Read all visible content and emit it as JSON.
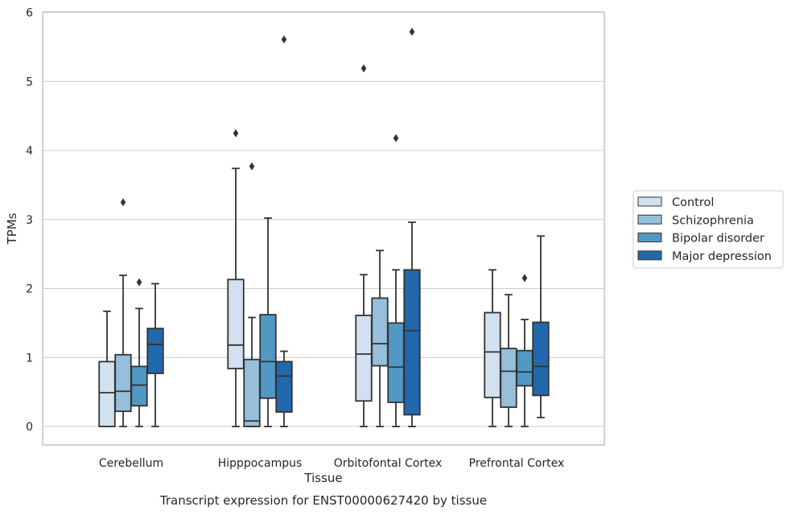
{
  "chart_data": {
    "type": "box",
    "title": "",
    "caption": "Transcript expression for ENST00000627420 by tissue",
    "xlabel": "Tissue",
    "ylabel": "TPMs",
    "ylim": [
      -0.27,
      6.0
    ],
    "yticks": [
      "0",
      "1",
      "2",
      "3",
      "4",
      "5",
      "6"
    ],
    "grid": "horizontal",
    "legend_position": "right",
    "categories": [
      "Cerebellum",
      "Hipppocampus",
      "Orbitofontal Cortex",
      "Prefrontal Cortex"
    ],
    "series": [
      {
        "name": "Control",
        "color": "#d1e1f0",
        "boxes": [
          {
            "whislo": 0.0,
            "q1": 0.0,
            "med": 0.49,
            "q3": 0.94,
            "whishi": 1.67,
            "fliers": []
          },
          {
            "whislo": 0.0,
            "q1": 0.84,
            "med": 1.18,
            "q3": 2.13,
            "whishi": 3.74,
            "fliers": [
              4.25
            ]
          },
          {
            "whislo": 0.0,
            "q1": 0.37,
            "med": 1.05,
            "q3": 1.61,
            "whishi": 2.2,
            "fliers": [
              5.19
            ]
          },
          {
            "whislo": 0.0,
            "q1": 0.42,
            "med": 1.08,
            "q3": 1.65,
            "whishi": 2.27,
            "fliers": []
          }
        ]
      },
      {
        "name": "Schizophrenia",
        "color": "#95bfda",
        "boxes": [
          {
            "whislo": 0.0,
            "q1": 0.22,
            "med": 0.51,
            "q3": 1.04,
            "whishi": 2.19,
            "fliers": [
              3.25
            ]
          },
          {
            "whislo": 0.0,
            "q1": 0.0,
            "med": 0.08,
            "q3": 0.97,
            "whishi": 1.58,
            "fliers": [
              3.77
            ]
          },
          {
            "whislo": 0.0,
            "q1": 0.88,
            "med": 1.2,
            "q3": 1.86,
            "whishi": 2.55,
            "fliers": []
          },
          {
            "whislo": 0.0,
            "q1": 0.28,
            "med": 0.8,
            "q3": 1.13,
            "whishi": 1.91,
            "fliers": []
          }
        ]
      },
      {
        "name": "Bipolar disorder",
        "color": "#5298c5",
        "boxes": [
          {
            "whislo": 0.0,
            "q1": 0.3,
            "med": 0.6,
            "q3": 0.87,
            "whishi": 1.71,
            "fliers": [
              2.09
            ]
          },
          {
            "whislo": 0.0,
            "q1": 0.41,
            "med": 0.94,
            "q3": 1.62,
            "whishi": 3.02,
            "fliers": []
          },
          {
            "whislo": 0.0,
            "q1": 0.35,
            "med": 0.86,
            "q3": 1.5,
            "whishi": 2.27,
            "fliers": [
              4.18
            ]
          },
          {
            "whislo": 0.0,
            "q1": 0.59,
            "med": 0.79,
            "q3": 1.1,
            "whishi": 1.55,
            "fliers": [
              2.15
            ]
          }
        ]
      },
      {
        "name": "Major depression",
        "color": "#2268ad",
        "boxes": [
          {
            "whislo": 0.0,
            "q1": 0.77,
            "med": 1.19,
            "q3": 1.42,
            "whishi": 2.07,
            "fliers": []
          },
          {
            "whislo": 0.0,
            "q1": 0.21,
            "med": 0.73,
            "q3": 0.94,
            "whishi": 1.09,
            "fliers": [
              5.61
            ]
          },
          {
            "whislo": 0.0,
            "q1": 0.17,
            "med": 1.39,
            "q3": 2.27,
            "whishi": 2.96,
            "fliers": [
              5.72
            ]
          },
          {
            "whislo": 0.13,
            "q1": 0.45,
            "med": 0.87,
            "q3": 1.51,
            "whishi": 2.76,
            "fliers": []
          }
        ]
      }
    ]
  }
}
